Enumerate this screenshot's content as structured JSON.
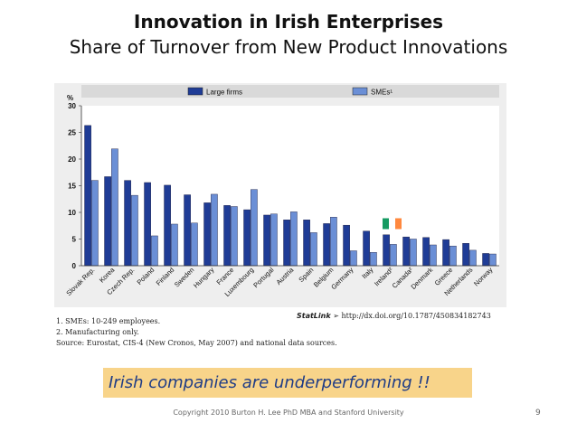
{
  "slide": {
    "title": "Innovation in Irish Enterprises",
    "subtitle": "Share of Turnover from New Product Innovations",
    "notes": [
      "1.  SMEs: 10-249 employees.",
      "2.  Manufacturing only.",
      "Source:  Eurostat, CIS-4 (New Cronos, May 2007) and national data sources."
    ],
    "statlink_brand": "StatLink",
    "statlink_url": "http://dx.doi.org/10.1787/450834182743",
    "callout": "Irish companies are underperforming !!",
    "footer": "Copyright 2010 Burton H. Lee PhD MBA and Stanford University",
    "page_number": "9"
  },
  "colors": {
    "large_firms": "#1f3c96",
    "smes": "#6b8fd6",
    "plot_bg": "#ffffff",
    "legend_bg": "#d9d9d9",
    "flag_green": "#169b62",
    "flag_white": "#ffffff",
    "flag_orange": "#ff883e",
    "callout_bg": "#f8d48a",
    "callout_text": "#1f3c86"
  },
  "chart_data": {
    "type": "bar",
    "ylabel": "%",
    "ylim": [
      0,
      30
    ],
    "yticks": [
      0,
      5,
      10,
      15,
      20,
      25,
      30
    ],
    "grid": false,
    "legend_position": "top",
    "categories": [
      "Slovak Rep.",
      "Korea",
      "Czech Rep.",
      "Poland",
      "Finland",
      "Sweden",
      "Hungary",
      "France",
      "Luxembourg",
      "Portugal",
      "Austria",
      "Spain",
      "Belgium",
      "Germany",
      "Italy",
      "Ireland²",
      "Canada²",
      "Denmark",
      "Greece",
      "Netherlands",
      "Norway"
    ],
    "series": [
      {
        "name": "Large firms",
        "values": [
          26.3,
          16.7,
          16.0,
          15.6,
          15.1,
          13.3,
          11.8,
          11.3,
          10.5,
          9.5,
          8.6,
          8.6,
          7.9,
          7.6,
          6.5,
          5.8,
          5.4,
          5.3,
          4.9,
          4.2,
          2.3
        ]
      },
      {
        "name": "SMEs¹",
        "values": [
          16.0,
          21.9,
          13.2,
          5.6,
          7.8,
          8.0,
          13.4,
          11.1,
          14.3,
          9.7,
          10.1,
          6.2,
          9.1,
          2.8,
          2.5,
          4.0,
          5.0,
          3.9,
          3.7,
          2.9,
          2.2
        ]
      }
    ]
  }
}
